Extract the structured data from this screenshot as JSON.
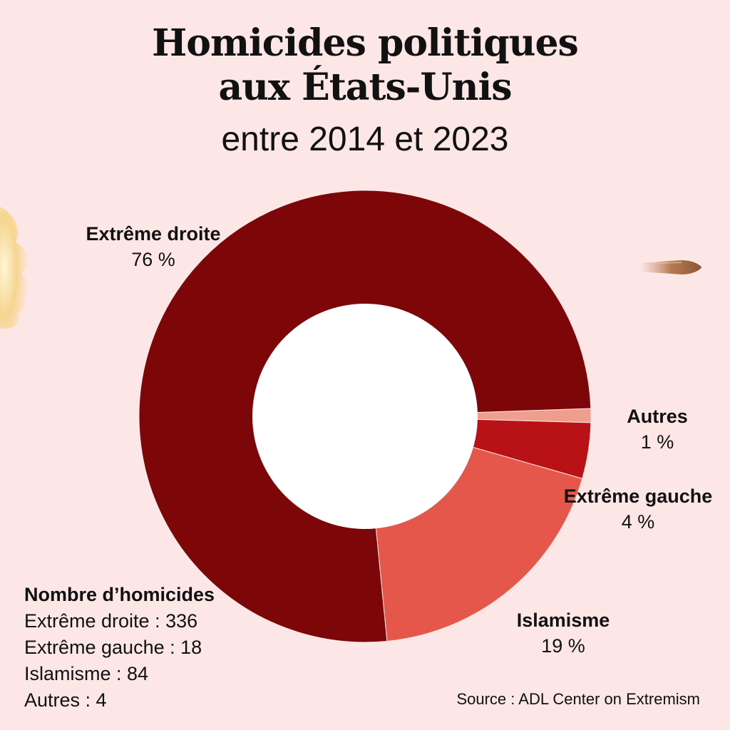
{
  "title_lines": [
    "Homicides politiques",
    "aux États-Unis"
  ],
  "subtitle": "entre 2014 et 2023",
  "chart_data": {
    "type": "pie",
    "style": "donut",
    "slices": [
      {
        "label": "Extrême droite",
        "percent": 76,
        "percent_text": "76 %",
        "color": "#7d0608"
      },
      {
        "label": "Islamisme",
        "percent": 19,
        "percent_text": "19 %",
        "color": "#e4574a"
      },
      {
        "label": "Extrême gauche",
        "percent": 4,
        "percent_text": "4 %",
        "color": "#b81217"
      },
      {
        "label": "Autres",
        "percent": 1,
        "percent_text": "1 %",
        "color": "#ef9d8d"
      }
    ]
  },
  "counts": {
    "heading": "Nombre d’homicides",
    "items": [
      "Extrême droite : 336",
      "Extrême gauche : 18",
      "Islamisme : 84",
      "Autres : 4"
    ]
  },
  "source": "Source : ADL Center on Extremism",
  "colors": {
    "background": "#fde6e6",
    "text": "#111111"
  },
  "decorations": [
    "gunshot-flash-icon",
    "bullet-icon"
  ]
}
